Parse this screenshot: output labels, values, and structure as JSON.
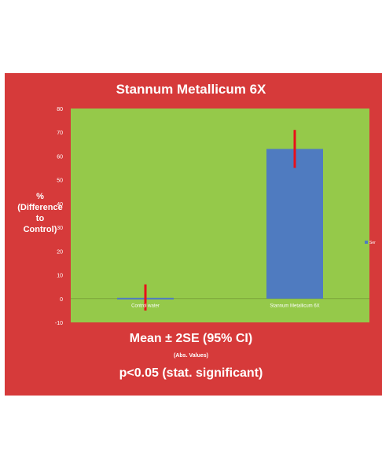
{
  "chart_data": {
    "type": "bar",
    "title": "Stannum Metallicum 6X",
    "ylabel": "% (Difference to Control)",
    "ylabel_lines": [
      "%",
      "(Difference",
      "to",
      "Control)"
    ],
    "xlabel": "",
    "categories": [
      "Control water",
      "Stannum Metallicum 6X"
    ],
    "values": [
      0,
      63
    ],
    "error_low": [
      -5,
      55
    ],
    "error_high": [
      6,
      71
    ],
    "ylim": [
      -10,
      80
    ],
    "yticks": [
      -10,
      0,
      10,
      20,
      30,
      40,
      50,
      60,
      70,
      80
    ],
    "grid": false,
    "legend_position": "right",
    "legend_label": "Ser",
    "colors": {
      "panel": "#d63a3a",
      "plot_area": "#95c94a",
      "bar": "#4f7bc0",
      "error_bar": "#e8101a",
      "text": "#ffffff"
    }
  },
  "notes": {
    "main": "Mean ± 2SE  (95% CI)",
    "sub": "(Abs. Values)",
    "significance": "p<0.05 (stat. significant)"
  }
}
